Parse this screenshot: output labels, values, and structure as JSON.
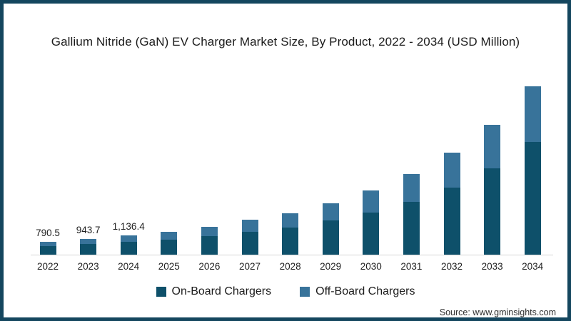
{
  "title": "Gallium Nitride (GaN) EV Charger Market Size, By Product, 2022 - 2034 (USD Million)",
  "source": "Source: www.gminsights.com",
  "colors": {
    "frame_border": "#14465E",
    "on_board": "#0E506A",
    "off_board": "#38739A",
    "axis_line": "#d6d6d6"
  },
  "chart_data": {
    "type": "bar",
    "stacked": true,
    "title": "Gallium Nitride (GaN) EV Charger Market Size, By Product, 2022 - 2034 (USD Million)",
    "unit": "USD Million",
    "categories": [
      "2022",
      "2023",
      "2024",
      "2025",
      "2026",
      "2027",
      "2028",
      "2029",
      "2030",
      "2031",
      "2032",
      "2033",
      "2034"
    ],
    "series": [
      {
        "name": "On-Board Chargers",
        "color": "#0E506A",
        "values": [
          530.0,
          631.0,
          757.0,
          890,
          1110,
          1370,
          1640,
          2030,
          2540,
          3180,
          4020,
          5180,
          6760
        ]
      },
      {
        "name": "Off-Board Chargers",
        "color": "#38739A",
        "values": [
          260.5,
          312.7,
          379.4,
          460,
          570,
          710,
          840,
          1050,
          1310,
          1640,
          2070,
          2600,
          3320
        ]
      }
    ],
    "labeled_totals": {
      "2022": 790.5,
      "2023": 943.7,
      "2024": 1136.4
    },
    "value_labels": [
      {
        "category": "2022",
        "label": "790.5"
      },
      {
        "category": "2023",
        "label": "943.7"
      },
      {
        "category": "2024",
        "label": "1,136.4"
      }
    ],
    "axis": {
      "y_axis_visible": false,
      "gridlines": false
    },
    "legend_position": "bottom",
    "values_2025_2034_estimated_from_bar_heights": true
  }
}
